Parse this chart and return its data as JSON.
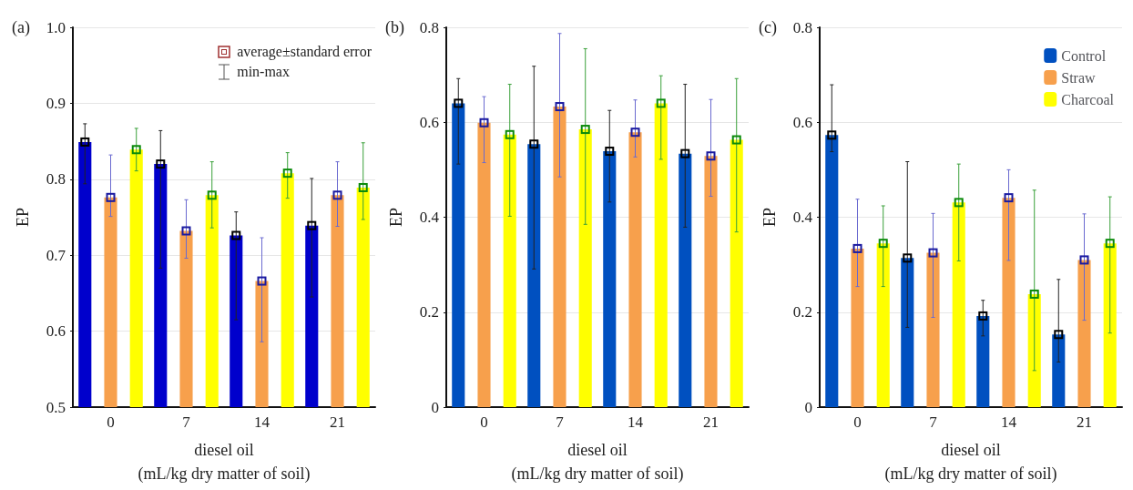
{
  "chart_data": [
    {
      "type": "bar",
      "title": "(a)",
      "xlabel": "diesel oil\n(mL/kg dry matter of soil)",
      "ylabel": "EP",
      "categories": [
        "0",
        "7",
        "14",
        "21"
      ],
      "ylim": [
        0.5,
        1.0
      ],
      "yticks": [
        0.5,
        0.6,
        0.7,
        0.8,
        0.9,
        {
          "value": 1.0,
          "label": "1.0"
        }
      ],
      "grid": "y",
      "legend": false,
      "marker": "square",
      "annotations": [
        "average±standard error",
        "min-max"
      ],
      "series": [
        {
          "color": "#0000cc",
          "values": [
            0.849,
            0.82,
            0.726,
            0.739
          ],
          "errors": [
            [
              0.794,
              0.873
            ],
            [
              0.683,
              0.864
            ],
            [
              0.615,
              0.757
            ],
            [
              0.645,
              0.801
            ]
          ]
        },
        {
          "color": "#f7a04c",
          "values": [
            0.776,
            0.732,
            0.666,
            0.779
          ],
          "errors": [
            [
              0.751,
              0.832
            ],
            [
              0.696,
              0.773
            ],
            [
              0.586,
              0.723
            ],
            [
              0.738,
              0.823
            ]
          ]
        },
        {
          "color": "#ffff00",
          "values": [
            0.839,
            0.779,
            0.808,
            0.789
          ],
          "errors": [
            [
              0.811,
              0.867
            ],
            [
              0.736,
              0.823
            ],
            [
              0.775,
              0.835
            ],
            [
              0.747,
              0.848
            ]
          ]
        }
      ]
    },
    {
      "type": "bar",
      "title": "(b)",
      "xlabel": "diesel oil\n(mL/kg dry matter of soil)",
      "ylabel": "EP",
      "categories": [
        "0",
        "7",
        "14",
        "21"
      ],
      "ylim": [
        0,
        0.8
      ],
      "yticks": [
        0,
        0.2,
        0.4,
        0.6,
        0.8
      ],
      "grid": "y",
      "legend": false,
      "marker": "square",
      "series": [
        {
          "color": "#0050c0",
          "values": [
            0.64,
            0.554,
            0.539,
            0.534
          ],
          "errors": [
            [
              0.512,
              0.692
            ],
            [
              0.291,
              0.718
            ],
            [
              0.432,
              0.625
            ],
            [
              0.379,
              0.68
            ]
          ]
        },
        {
          "color": "#f7a04c",
          "values": [
            0.599,
            0.633,
            0.579,
            0.529
          ],
          "errors": [
            [
              0.515,
              0.654
            ],
            [
              0.485,
              0.787
            ],
            [
              0.527,
              0.647
            ],
            [
              0.444,
              0.648
            ]
          ]
        },
        {
          "color": "#ffff00",
          "values": [
            0.574,
            0.585,
            0.64,
            0.563
          ],
          "errors": [
            [
              0.402,
              0.68
            ],
            [
              0.385,
              0.755
            ],
            [
              0.522,
              0.698
            ],
            [
              0.369,
              0.692
            ]
          ]
        }
      ]
    },
    {
      "type": "bar",
      "title": "(c)",
      "xlabel": "diesel oil\n(mL/kg dry matter of soil)",
      "ylabel": "EP",
      "categories": [
        "0",
        "7",
        "14",
        "21"
      ],
      "ylim": [
        0,
        0.8
      ],
      "yticks": [
        0,
        0.2,
        0.4,
        0.6,
        0.8
      ],
      "grid": "y",
      "legend": "top right",
      "marker": "square",
      "series": [
        {
          "name": "Control",
          "color": "#0050c0",
          "values": [
            0.573,
            0.314,
            0.192,
            0.153
          ],
          "errors": [
            [
              0.538,
              0.679
            ],
            [
              0.168,
              0.517
            ],
            [
              0.15,
              0.225
            ],
            [
              0.095,
              0.269
            ]
          ]
        },
        {
          "name": "Straw",
          "color": "#f7a04c",
          "values": [
            0.334,
            0.325,
            0.441,
            0.31
          ],
          "errors": [
            [
              0.254,
              0.438
            ],
            [
              0.189,
              0.408
            ],
            [
              0.309,
              0.5
            ],
            [
              0.183,
              0.407
            ]
          ]
        },
        {
          "name": "Charcoal",
          "color": "#ffff00",
          "values": [
            0.345,
            0.431,
            0.238,
            0.345
          ],
          "errors": [
            [
              0.254,
              0.424
            ],
            [
              0.308,
              0.512
            ],
            [
              0.077,
              0.457
            ],
            [
              0.156,
              0.443
            ]
          ]
        }
      ]
    }
  ]
}
